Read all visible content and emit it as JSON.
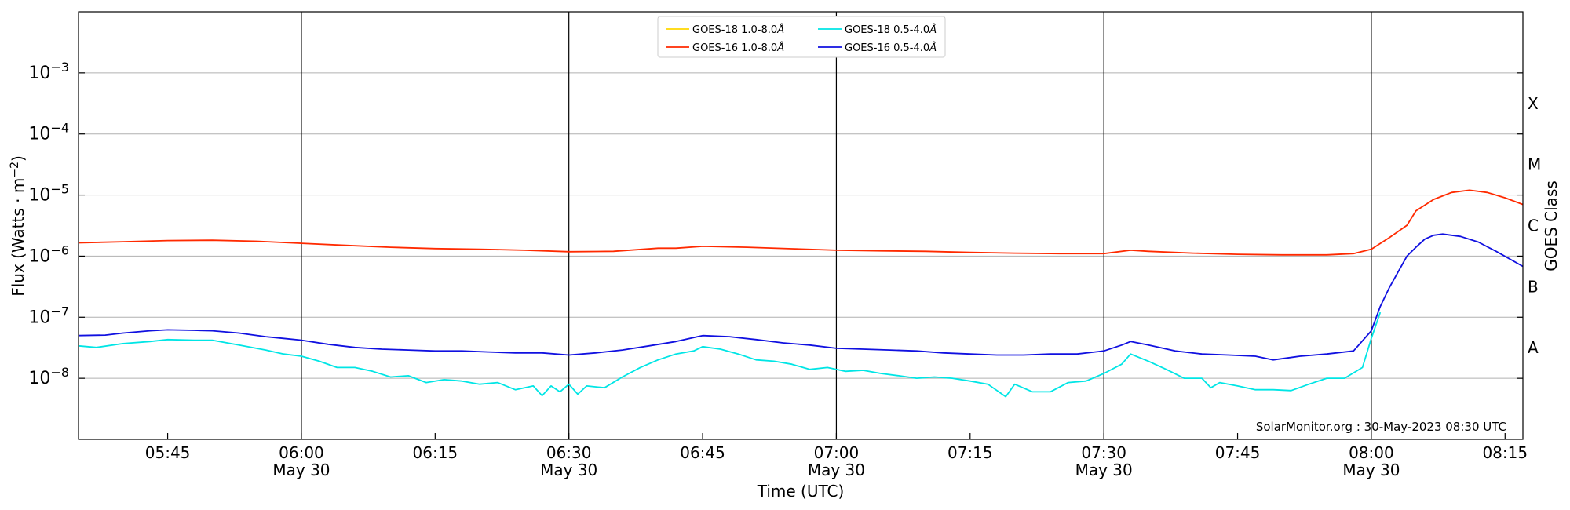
{
  "chart_data": {
    "type": "line",
    "xlabel": "Time (UTC)",
    "ylabel_main": "Flux (Watts · m",
    "ylabel_sup": "−2",
    "ylabel_close": ")",
    "ylabel_right": "GOES Class",
    "y_scale": "log",
    "xlim": [
      "05:35",
      "08:17"
    ],
    "ylim": [
      1e-09,
      0.01
    ],
    "grid": "horizontal",
    "legend_position": "top-center",
    "x_ticks": [
      {
        "t": "05:45",
        "label": "05:45",
        "sub": ""
      },
      {
        "t": "06:00",
        "label": "06:00",
        "sub": "May 30"
      },
      {
        "t": "06:15",
        "label": "06:15",
        "sub": ""
      },
      {
        "t": "06:30",
        "label": "06:30",
        "sub": "May 30"
      },
      {
        "t": "06:45",
        "label": "06:45",
        "sub": ""
      },
      {
        "t": "07:00",
        "label": "07:00",
        "sub": "May 30"
      },
      {
        "t": "07:15",
        "label": "07:15",
        "sub": ""
      },
      {
        "t": "07:30",
        "label": "07:30",
        "sub": "May 30"
      },
      {
        "t": "07:45",
        "label": "07:45",
        "sub": ""
      },
      {
        "t": "08:00",
        "label": "08:00",
        "sub": "May 30"
      },
      {
        "t": "08:15",
        "label": "08:15",
        "sub": ""
      }
    ],
    "vertical_lines": [
      "06:00",
      "06:30",
      "07:00",
      "07:30",
      "08:00"
    ],
    "y_ticks": [
      {
        "value": 1e-08,
        "base": "10",
        "exp": "−8"
      },
      {
        "value": 1e-07,
        "base": "10",
        "exp": "−7"
      },
      {
        "value": 1e-06,
        "base": "10",
        "exp": "−6"
      },
      {
        "value": 1e-05,
        "base": "10",
        "exp": "−5"
      },
      {
        "value": 0.0001,
        "base": "10",
        "exp": "−4"
      },
      {
        "value": 0.001,
        "base": "10",
        "exp": "−3"
      }
    ],
    "goes_classes": [
      {
        "label": "A",
        "value": 3.16e-08
      },
      {
        "label": "B",
        "value": 3.16e-07
      },
      {
        "label": "C",
        "value": 3.16e-06
      },
      {
        "label": "M",
        "value": 3.16e-05
      },
      {
        "label": "X",
        "value": 0.000316
      }
    ],
    "annotation": "SolarMonitor.org : 30-May-2023 08:30 UTC",
    "series": [
      {
        "name": "GOES-18 1.0-8.0",
        "color": "#ffd700",
        "points": []
      },
      {
        "name": "GOES-16 1.0-8.0",
        "color": "#ff2a00",
        "points": [
          [
            "05:35",
            1.65e-06
          ],
          [
            "05:40",
            1.72e-06
          ],
          [
            "05:45",
            1.8e-06
          ],
          [
            "05:50",
            1.82e-06
          ],
          [
            "05:55",
            1.75e-06
          ],
          [
            "06:00",
            1.62e-06
          ],
          [
            "06:05",
            1.5e-06
          ],
          [
            "06:10",
            1.4e-06
          ],
          [
            "06:15",
            1.33e-06
          ],
          [
            "06:20",
            1.3e-06
          ],
          [
            "06:25",
            1.25e-06
          ],
          [
            "06:30",
            1.18e-06
          ],
          [
            "06:35",
            1.2e-06
          ],
          [
            "06:40",
            1.35e-06
          ],
          [
            "06:42",
            1.35e-06
          ],
          [
            "06:45",
            1.45e-06
          ],
          [
            "06:50",
            1.4e-06
          ],
          [
            "06:55",
            1.32e-06
          ],
          [
            "07:00",
            1.25e-06
          ],
          [
            "07:05",
            1.22e-06
          ],
          [
            "07:10",
            1.2e-06
          ],
          [
            "07:15",
            1.15e-06
          ],
          [
            "07:20",
            1.12e-06
          ],
          [
            "07:25",
            1.1e-06
          ],
          [
            "07:30",
            1.1e-06
          ],
          [
            "07:33",
            1.25e-06
          ],
          [
            "07:35",
            1.2e-06
          ],
          [
            "07:40",
            1.12e-06
          ],
          [
            "07:45",
            1.07e-06
          ],
          [
            "07:50",
            1.05e-06
          ],
          [
            "07:55",
            1.05e-06
          ],
          [
            "07:58",
            1.1e-06
          ],
          [
            "08:00",
            1.3e-06
          ],
          [
            "08:02",
            2e-06
          ],
          [
            "08:04",
            3.2e-06
          ],
          [
            "08:05",
            5.5e-06
          ],
          [
            "08:07",
            8.5e-06
          ],
          [
            "08:09",
            1.1e-05
          ],
          [
            "08:11",
            1.2e-05
          ],
          [
            "08:13",
            1.1e-05
          ],
          [
            "08:15",
            9e-06
          ],
          [
            "08:17",
            7e-06
          ]
        ]
      },
      {
        "name": "GOES-18 0.5-4.0",
        "color": "#00e5e5",
        "points": [
          [
            "05:35",
            3.4e-08
          ],
          [
            "05:37",
            3.2e-08
          ],
          [
            "05:40",
            3.7e-08
          ],
          [
            "05:43",
            4e-08
          ],
          [
            "05:45",
            4.3e-08
          ],
          [
            "05:48",
            4.2e-08
          ],
          [
            "05:50",
            4.2e-08
          ],
          [
            "05:53",
            3.5e-08
          ],
          [
            "05:56",
            2.9e-08
          ],
          [
            "05:58",
            2.5e-08
          ],
          [
            "06:00",
            2.3e-08
          ],
          [
            "06:02",
            1.9e-08
          ],
          [
            "06:04",
            1.5e-08
          ],
          [
            "06:06",
            1.5e-08
          ],
          [
            "06:08",
            1.3e-08
          ],
          [
            "06:10",
            1.05e-08
          ],
          [
            "06:12",
            1.1e-08
          ],
          [
            "06:14",
            8.5e-09
          ],
          [
            "06:16",
            9.5e-09
          ],
          [
            "06:18",
            9e-09
          ],
          [
            "06:20",
            8e-09
          ],
          [
            "06:22",
            8.5e-09
          ],
          [
            "06:24",
            6.5e-09
          ],
          [
            "06:26",
            7.5e-09
          ],
          [
            "06:27",
            5.2e-09
          ],
          [
            "06:28",
            7.5e-09
          ],
          [
            "06:29",
            6e-09
          ],
          [
            "06:30",
            8e-09
          ],
          [
            "06:31",
            5.5e-09
          ],
          [
            "06:32",
            7.5e-09
          ],
          [
            "06:34",
            7e-09
          ],
          [
            "06:36",
            1.05e-08
          ],
          [
            "06:38",
            1.5e-08
          ],
          [
            "06:40",
            2e-08
          ],
          [
            "06:42",
            2.5e-08
          ],
          [
            "06:44",
            2.8e-08
          ],
          [
            "06:45",
            3.3e-08
          ],
          [
            "06:47",
            3e-08
          ],
          [
            "06:49",
            2.5e-08
          ],
          [
            "06:51",
            2e-08
          ],
          [
            "06:53",
            1.9e-08
          ],
          [
            "06:55",
            1.7e-08
          ],
          [
            "06:57",
            1.4e-08
          ],
          [
            "06:59",
            1.5e-08
          ],
          [
            "07:01",
            1.3e-08
          ],
          [
            "07:03",
            1.35e-08
          ],
          [
            "07:05",
            1.2e-08
          ],
          [
            "07:07",
            1.1e-08
          ],
          [
            "07:09",
            1e-08
          ],
          [
            "07:11",
            1.05e-08
          ],
          [
            "07:13",
            1e-08
          ],
          [
            "07:15",
            9e-09
          ],
          [
            "07:17",
            8e-09
          ],
          [
            "07:19",
            5e-09
          ],
          [
            "07:20",
            8e-09
          ],
          [
            "07:22",
            6e-09
          ],
          [
            "07:24",
            6e-09
          ],
          [
            "07:26",
            8.5e-09
          ],
          [
            "07:28",
            9e-09
          ],
          [
            "07:30",
            1.2e-08
          ],
          [
            "07:32",
            1.7e-08
          ],
          [
            "07:33",
            2.5e-08
          ],
          [
            "07:35",
            1.9e-08
          ],
          [
            "07:37",
            1.4e-08
          ],
          [
            "07:39",
            1e-08
          ],
          [
            "07:41",
            1e-08
          ],
          [
            "07:42",
            7e-09
          ],
          [
            "07:43",
            8.5e-09
          ],
          [
            "07:45",
            7.5e-09
          ],
          [
            "07:47",
            6.5e-09
          ],
          [
            "07:49",
            6.5e-09
          ],
          [
            "07:51",
            6.3e-09
          ],
          [
            "07:53",
            8e-09
          ],
          [
            "07:55",
            1e-08
          ],
          [
            "07:57",
            1e-08
          ],
          [
            "07:59",
            1.5e-08
          ],
          [
            "08:00",
            4.5e-08
          ],
          [
            "08:01",
            1.2e-07
          ]
        ]
      },
      {
        "name": "GOES-16 0.5-4.0",
        "color": "#1010e0",
        "points": [
          [
            "05:35",
            5e-08
          ],
          [
            "05:38",
            5.1e-08
          ],
          [
            "05:40",
            5.5e-08
          ],
          [
            "05:43",
            6e-08
          ],
          [
            "05:45",
            6.2e-08
          ],
          [
            "05:48",
            6.1e-08
          ],
          [
            "05:50",
            6e-08
          ],
          [
            "05:53",
            5.5e-08
          ],
          [
            "05:56",
            4.8e-08
          ],
          [
            "05:58",
            4.5e-08
          ],
          [
            "06:00",
            4.2e-08
          ],
          [
            "06:03",
            3.6e-08
          ],
          [
            "06:06",
            3.2e-08
          ],
          [
            "06:09",
            3e-08
          ],
          [
            "06:12",
            2.9e-08
          ],
          [
            "06:15",
            2.8e-08
          ],
          [
            "06:18",
            2.8e-08
          ],
          [
            "06:21",
            2.7e-08
          ],
          [
            "06:24",
            2.6e-08
          ],
          [
            "06:27",
            2.6e-08
          ],
          [
            "06:30",
            2.4e-08
          ],
          [
            "06:33",
            2.6e-08
          ],
          [
            "06:36",
            2.9e-08
          ],
          [
            "06:39",
            3.4e-08
          ],
          [
            "06:42",
            4e-08
          ],
          [
            "06:45",
            5e-08
          ],
          [
            "06:48",
            4.8e-08
          ],
          [
            "06:51",
            4.3e-08
          ],
          [
            "06:54",
            3.8e-08
          ],
          [
            "06:57",
            3.5e-08
          ],
          [
            "07:00",
            3.1e-08
          ],
          [
            "07:03",
            3e-08
          ],
          [
            "07:06",
            2.9e-08
          ],
          [
            "07:09",
            2.8e-08
          ],
          [
            "07:12",
            2.6e-08
          ],
          [
            "07:15",
            2.5e-08
          ],
          [
            "07:18",
            2.4e-08
          ],
          [
            "07:21",
            2.4e-08
          ],
          [
            "07:24",
            2.5e-08
          ],
          [
            "07:27",
            2.5e-08
          ],
          [
            "07:30",
            2.8e-08
          ],
          [
            "07:32",
            3.5e-08
          ],
          [
            "07:33",
            4e-08
          ],
          [
            "07:35",
            3.5e-08
          ],
          [
            "07:38",
            2.8e-08
          ],
          [
            "07:41",
            2.5e-08
          ],
          [
            "07:44",
            2.4e-08
          ],
          [
            "07:47",
            2.3e-08
          ],
          [
            "07:49",
            2e-08
          ],
          [
            "07:52",
            2.3e-08
          ],
          [
            "07:55",
            2.5e-08
          ],
          [
            "07:58",
            2.8e-08
          ],
          [
            "08:00",
            6e-08
          ],
          [
            "08:01",
            1.5e-07
          ],
          [
            "08:02",
            3e-07
          ],
          [
            "08:03",
            5.5e-07
          ],
          [
            "08:04",
            1e-06
          ],
          [
            "08:05",
            1.4e-06
          ],
          [
            "08:06",
            1.9e-06
          ],
          [
            "08:07",
            2.2e-06
          ],
          [
            "08:08",
            2.3e-06
          ],
          [
            "08:10",
            2.1e-06
          ],
          [
            "08:12",
            1.7e-06
          ],
          [
            "08:14",
            1.2e-06
          ],
          [
            "08:17",
            6.8e-07
          ]
        ]
      }
    ]
  }
}
